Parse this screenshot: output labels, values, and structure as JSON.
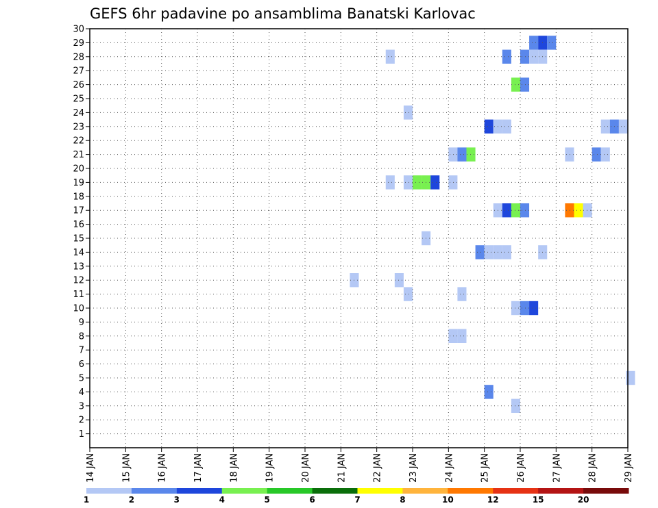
{
  "chart_data": {
    "type": "heatmap",
    "title": "GEFS 6hr padavine po ansamblima Banatski Karlovac",
    "xlabel": "",
    "ylabel": "",
    "x_ticks": [
      "14 JAN",
      "15 JAN",
      "16 JAN",
      "17 JAN",
      "18 JAN",
      "19 JAN",
      "20 JAN",
      "21 JAN",
      "22 JAN",
      "23 JAN",
      "24 JAN",
      "25 JAN",
      "26 JAN",
      "27 JAN",
      "28 JAN",
      "29 JAN"
    ],
    "y_ticks": [
      "1",
      "2",
      "3",
      "4",
      "5",
      "6",
      "7",
      "8",
      "9",
      "10",
      "11",
      "12",
      "13",
      "14",
      "15",
      "16",
      "17",
      "18",
      "19",
      "20",
      "21",
      "22",
      "23",
      "24",
      "25",
      "26",
      "27",
      "28",
      "29",
      "30"
    ],
    "xlim": [
      0,
      15
    ],
    "ylim": [
      0,
      30
    ],
    "grid": true,
    "cell_width_days": 0.25,
    "legend": {
      "position": "bottom",
      "labels": [
        "1",
        "2",
        "3",
        "4",
        "5",
        "6",
        "7",
        "8",
        "10",
        "12",
        "15",
        "20"
      ],
      "colors": [
        "#b4c8f5",
        "#5a87eb",
        "#1e46dc",
        "#78f050",
        "#28c828",
        "#0a6e0a",
        "#ffff00",
        "#ffb43c",
        "#ff7800",
        "#e63214",
        "#b41414",
        "#780a0a"
      ]
    },
    "cells": [
      {
        "member": 29,
        "t": 12.25,
        "level": 2
      },
      {
        "member": 29,
        "t": 12.5,
        "level": 3
      },
      {
        "member": 29,
        "t": 12.75,
        "level": 2
      },
      {
        "member": 28,
        "t": 8.25,
        "level": 1
      },
      {
        "member": 28,
        "t": 11.5,
        "level": 2
      },
      {
        "member": 28,
        "t": 12.0,
        "level": 2
      },
      {
        "member": 28,
        "t": 12.25,
        "level": 1
      },
      {
        "member": 28,
        "t": 12.5,
        "level": 1
      },
      {
        "member": 26,
        "t": 11.75,
        "level": 4
      },
      {
        "member": 26,
        "t": 12.0,
        "level": 2
      },
      {
        "member": 24,
        "t": 8.75,
        "level": 1
      },
      {
        "member": 23,
        "t": 11.0,
        "level": 3
      },
      {
        "member": 23,
        "t": 11.25,
        "level": 1
      },
      {
        "member": 23,
        "t": 11.5,
        "level": 1
      },
      {
        "member": 23,
        "t": 14.25,
        "level": 1
      },
      {
        "member": 23,
        "t": 14.5,
        "level": 2
      },
      {
        "member": 23,
        "t": 14.75,
        "level": 1
      },
      {
        "member": 21,
        "t": 10.0,
        "level": 1
      },
      {
        "member": 21,
        "t": 10.25,
        "level": 2
      },
      {
        "member": 21,
        "t": 10.5,
        "level": 4
      },
      {
        "member": 21,
        "t": 13.25,
        "level": 1
      },
      {
        "member": 21,
        "t": 14.0,
        "level": 2
      },
      {
        "member": 21,
        "t": 14.25,
        "level": 1
      },
      {
        "member": 19,
        "t": 8.25,
        "level": 1
      },
      {
        "member": 19,
        "t": 8.75,
        "level": 1
      },
      {
        "member": 19,
        "t": 9.0,
        "level": 4
      },
      {
        "member": 19,
        "t": 9.25,
        "level": 4
      },
      {
        "member": 19,
        "t": 9.5,
        "level": 3
      },
      {
        "member": 19,
        "t": 10.0,
        "level": 1
      },
      {
        "member": 17,
        "t": 11.25,
        "level": 1
      },
      {
        "member": 17,
        "t": 11.5,
        "level": 3
      },
      {
        "member": 17,
        "t": 11.75,
        "level": 4
      },
      {
        "member": 17,
        "t": 12.0,
        "level": 2
      },
      {
        "member": 17,
        "t": 13.25,
        "level": 9
      },
      {
        "member": 17,
        "t": 13.5,
        "level": 7
      },
      {
        "member": 17,
        "t": 13.75,
        "level": 1
      },
      {
        "member": 15,
        "t": 9.25,
        "level": 1
      },
      {
        "member": 14,
        "t": 10.75,
        "level": 2
      },
      {
        "member": 14,
        "t": 11.0,
        "level": 1
      },
      {
        "member": 14,
        "t": 11.25,
        "level": 1
      },
      {
        "member": 14,
        "t": 11.5,
        "level": 1
      },
      {
        "member": 14,
        "t": 12.5,
        "level": 1
      },
      {
        "member": 12,
        "t": 7.25,
        "level": 1
      },
      {
        "member": 12,
        "t": 8.5,
        "level": 1
      },
      {
        "member": 11,
        "t": 8.75,
        "level": 1
      },
      {
        "member": 11,
        "t": 10.25,
        "level": 1
      },
      {
        "member": 10,
        "t": 11.75,
        "level": 1
      },
      {
        "member": 10,
        "t": 12.0,
        "level": 2
      },
      {
        "member": 10,
        "t": 12.25,
        "level": 3
      },
      {
        "member": 8,
        "t": 10.0,
        "level": 1
      },
      {
        "member": 8,
        "t": 10.25,
        "level": 1
      },
      {
        "member": 5,
        "t": 14.95,
        "level": 1
      },
      {
        "member": 4,
        "t": 11.0,
        "level": 2
      },
      {
        "member": 3,
        "t": 11.75,
        "level": 1
      }
    ]
  }
}
